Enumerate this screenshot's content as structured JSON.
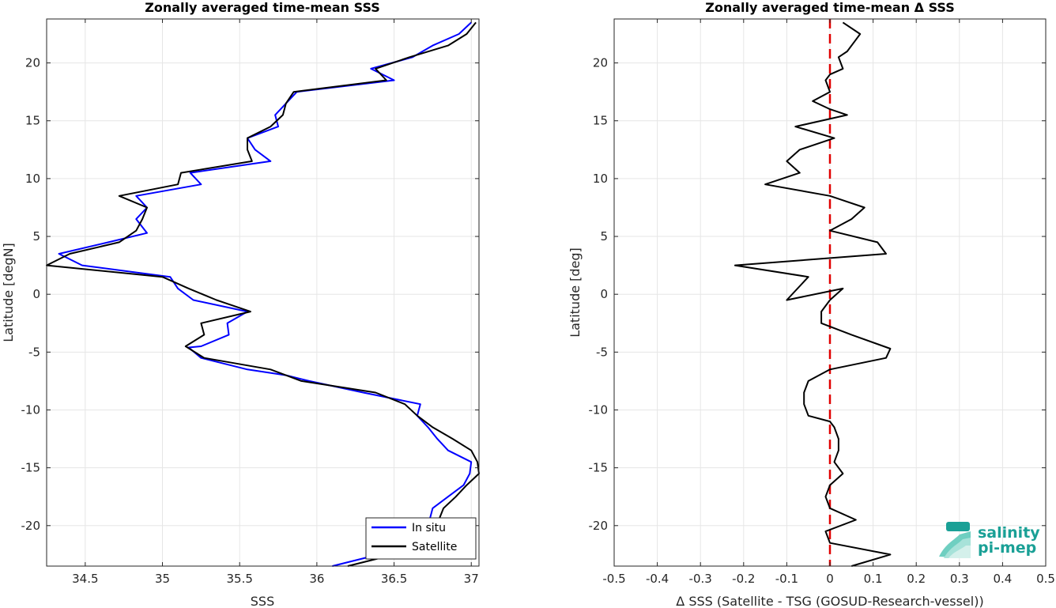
{
  "chart_data": [
    {
      "type": "line",
      "title": "Zonally averaged time-mean SSS",
      "xlabel": "SSS",
      "ylabel": "Latitude [degN]",
      "xlim": [
        34.25,
        37.05
      ],
      "ylim": [
        -23.5,
        23.8
      ],
      "xticks": [
        34.5,
        35,
        35.5,
        36,
        36.5,
        37
      ],
      "xtick_labels": [
        "34.5",
        "35",
        "35.5",
        "36",
        "36.5",
        "37"
      ],
      "yticks": [
        -20,
        -15,
        -10,
        -5,
        0,
        5,
        10,
        15,
        20
      ],
      "ytick_labels": [
        "-20",
        "-15",
        "-10",
        "-5",
        "0",
        "5",
        "10",
        "15",
        "20"
      ],
      "grid": true,
      "legend": "bottom-right",
      "series": [
        {
          "name": "In situ",
          "color": "#0000ff",
          "points": [
            [
              36.1,
              -23.5
            ],
            [
              36.4,
              -22.5
            ],
            [
              36.7,
              -21.5
            ],
            [
              36.73,
              -20.5
            ],
            [
              36.73,
              -19.5
            ],
            [
              36.75,
              -18.5
            ],
            [
              36.85,
              -17.5
            ],
            [
              36.95,
              -16.5
            ],
            [
              36.99,
              -15.5
            ],
            [
              37.0,
              -14.5
            ],
            [
              36.85,
              -13.5
            ],
            [
              36.78,
              -12.5
            ],
            [
              36.72,
              -11.5
            ],
            [
              36.65,
              -10.5
            ],
            [
              36.67,
              -9.5
            ],
            [
              36.3,
              -8.5
            ],
            [
              35.95,
              -7.5
            ],
            [
              35.8,
              -7.0
            ],
            [
              35.55,
              -6.5
            ],
            [
              35.25,
              -5.5
            ],
            [
              35.17,
              -4.6
            ],
            [
              35.25,
              -4.5
            ],
            [
              35.43,
              -3.5
            ],
            [
              35.42,
              -2.5
            ],
            [
              35.55,
              -1.5
            ],
            [
              35.2,
              -0.5
            ],
            [
              35.1,
              0.5
            ],
            [
              35.05,
              1.5
            ],
            [
              34.48,
              2.5
            ],
            [
              34.33,
              3.5
            ],
            [
              34.65,
              4.5
            ],
            [
              34.9,
              5.3
            ],
            [
              34.83,
              6.5
            ],
            [
              34.9,
              7.5
            ],
            [
              34.83,
              8.5
            ],
            [
              35.25,
              9.5
            ],
            [
              35.18,
              10.5
            ],
            [
              35.7,
              11.5
            ],
            [
              35.6,
              12.5
            ],
            [
              35.55,
              13.5
            ],
            [
              35.75,
              14.5
            ],
            [
              35.73,
              15.5
            ],
            [
              35.8,
              16.5
            ],
            [
              35.87,
              17.5
            ],
            [
              36.5,
              18.5
            ],
            [
              36.35,
              19.5
            ],
            [
              36.62,
              20.5
            ],
            [
              36.75,
              21.5
            ],
            [
              36.92,
              22.5
            ],
            [
              37.0,
              23.5
            ]
          ]
        },
        {
          "name": "Satellite",
          "color": "#000000",
          "points": [
            [
              36.2,
              -23.5
            ],
            [
              36.5,
              -22.5
            ],
            [
              36.75,
              -21.5
            ],
            [
              36.78,
              -20.5
            ],
            [
              36.79,
              -19.5
            ],
            [
              36.82,
              -18.5
            ],
            [
              36.9,
              -17.5
            ],
            [
              36.97,
              -16.5
            ],
            [
              37.05,
              -15.5
            ],
            [
              37.04,
              -14.5
            ],
            [
              37.0,
              -13.5
            ],
            [
              36.88,
              -12.5
            ],
            [
              36.75,
              -11.5
            ],
            [
              36.65,
              -10.5
            ],
            [
              36.57,
              -9.5
            ],
            [
              36.38,
              -8.5
            ],
            [
              35.9,
              -7.5
            ],
            [
              35.7,
              -6.5
            ],
            [
              35.27,
              -5.5
            ],
            [
              35.15,
              -4.5
            ],
            [
              35.27,
              -3.5
            ],
            [
              35.25,
              -2.5
            ],
            [
              35.57,
              -1.5
            ],
            [
              35.35,
              -0.5
            ],
            [
              35.17,
              0.5
            ],
            [
              35.0,
              1.5
            ],
            [
              34.25,
              2.5
            ],
            [
              34.4,
              3.5
            ],
            [
              34.72,
              4.5
            ],
            [
              34.83,
              5.5
            ],
            [
              34.87,
              6.5
            ],
            [
              34.9,
              7.5
            ],
            [
              34.72,
              8.5
            ],
            [
              35.1,
              9.5
            ],
            [
              35.12,
              10.5
            ],
            [
              35.58,
              11.5
            ],
            [
              35.55,
              12.5
            ],
            [
              35.55,
              13.5
            ],
            [
              35.7,
              14.5
            ],
            [
              35.78,
              15.5
            ],
            [
              35.8,
              16.5
            ],
            [
              35.85,
              17.5
            ],
            [
              36.45,
              18.5
            ],
            [
              36.38,
              19.5
            ],
            [
              36.6,
              20.5
            ],
            [
              36.85,
              21.5
            ],
            [
              36.97,
              22.5
            ],
            [
              37.03,
              23.5
            ]
          ]
        }
      ]
    },
    {
      "type": "line",
      "title": "Zonally averaged time-mean Δ SSS",
      "xlabel": "Δ SSS (Satellite - TSG (GOSUD-Research-vessel))",
      "ylabel": "Latitude [deg]",
      "xlim": [
        -0.5,
        0.5
      ],
      "ylim": [
        -23.5,
        23.8
      ],
      "xticks": [
        -0.5,
        -0.4,
        -0.3,
        -0.2,
        -0.1,
        0,
        0.1,
        0.2,
        0.3,
        0.4,
        0.5
      ],
      "xtick_labels": [
        "-0.5",
        "-0.4",
        "-0.3",
        "-0.2",
        "-0.1",
        "0",
        "0.1",
        "0.2",
        "0.3",
        "0.4",
        "0.5"
      ],
      "yticks": [
        -20,
        -15,
        -10,
        -5,
        0,
        5,
        10,
        15,
        20
      ],
      "ytick_labels": [
        "-20",
        "-15",
        "-10",
        "-5",
        "0",
        "5",
        "10",
        "15",
        "20"
      ],
      "grid": true,
      "zero_line": {
        "value": 0,
        "color": "#e00000",
        "style": "dashed"
      },
      "series": [
        {
          "color": "#000000",
          "points": [
            [
              0.05,
              -23.5
            ],
            [
              0.14,
              -22.5
            ],
            [
              0.0,
              -21.5
            ],
            [
              -0.01,
              -20.5
            ],
            [
              0.06,
              -19.5
            ],
            [
              0.0,
              -18.5
            ],
            [
              -0.01,
              -17.5
            ],
            [
              0.0,
              -16.5
            ],
            [
              0.03,
              -15.5
            ],
            [
              0.01,
              -14.5
            ],
            [
              0.02,
              -13.5
            ],
            [
              0.02,
              -12.5
            ],
            [
              0.01,
              -11.5
            ],
            [
              0.0,
              -11.0
            ],
            [
              -0.05,
              -10.5
            ],
            [
              -0.06,
              -9.5
            ],
            [
              -0.06,
              -8.5
            ],
            [
              -0.05,
              -7.5
            ],
            [
              0.0,
              -6.5
            ],
            [
              0.13,
              -5.5
            ],
            [
              0.14,
              -4.7
            ],
            [
              0.05,
              -3.5
            ],
            [
              -0.02,
              -2.5
            ],
            [
              -0.02,
              -1.5
            ],
            [
              0.0,
              -0.5
            ],
            [
              0.03,
              0.5
            ],
            [
              -0.1,
              -0.5
            ],
            [
              -0.05,
              1.5
            ],
            [
              -0.22,
              2.5
            ],
            [
              0.13,
              3.5
            ],
            [
              0.11,
              4.5
            ],
            [
              0.0,
              5.5
            ],
            [
              0.05,
              6.5
            ],
            [
              0.08,
              7.5
            ],
            [
              0.0,
              8.5
            ],
            [
              -0.15,
              9.5
            ],
            [
              -0.07,
              10.5
            ],
            [
              -0.1,
              11.5
            ],
            [
              -0.07,
              12.5
            ],
            [
              0.01,
              13.5
            ],
            [
              -0.08,
              14.5
            ],
            [
              0.04,
              15.5
            ],
            [
              0.0,
              16.0
            ],
            [
              -0.04,
              16.7
            ],
            [
              0.0,
              17.5
            ],
            [
              -0.01,
              18.5
            ],
            [
              0.0,
              19.0
            ],
            [
              0.03,
              19.5
            ],
            [
              0.02,
              20.5
            ],
            [
              0.04,
              21.0
            ],
            [
              0.06,
              22.0
            ],
            [
              0.07,
              22.5
            ],
            [
              0.03,
              23.5
            ]
          ]
        }
      ]
    }
  ],
  "logo": {
    "line1": "salinity",
    "line2": "pi-mep",
    "color": "#1aa096"
  }
}
